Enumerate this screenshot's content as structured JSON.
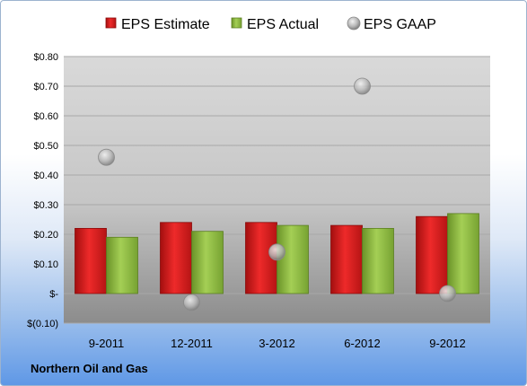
{
  "chart_data": {
    "type": "bar",
    "categories": [
      "9-2011",
      "12-2011",
      "3-2012",
      "6-2012",
      "9-2012"
    ],
    "series": [
      {
        "name": "EPS Estimate",
        "kind": "bar",
        "color": "#d81e1e",
        "values": [
          0.22,
          0.24,
          0.24,
          0.23,
          0.26
        ]
      },
      {
        "name": "EPS Actual",
        "kind": "bar",
        "color": "#8fbf3e",
        "values": [
          0.19,
          0.21,
          0.23,
          0.22,
          0.27
        ]
      },
      {
        "name": "EPS GAAP",
        "kind": "marker",
        "color": "#b3b3b3",
        "values": [
          0.46,
          -0.03,
          0.14,
          0.7,
          0.0
        ]
      }
    ],
    "ylim": [
      -0.1,
      0.8
    ],
    "yticks": [
      {
        "value": 0.8,
        "label": "$0.80"
      },
      {
        "value": 0.7,
        "label": "$0.70"
      },
      {
        "value": 0.6,
        "label": "$0.60"
      },
      {
        "value": 0.5,
        "label": "$0.50"
      },
      {
        "value": 0.4,
        "label": "$0.40"
      },
      {
        "value": 0.3,
        "label": "$0.30"
      },
      {
        "value": 0.2,
        "label": "$0.20"
      },
      {
        "value": 0.1,
        "label": "$0.10"
      },
      {
        "value": 0.0,
        "label": "$-"
      },
      {
        "value": -0.1,
        "label": "$(0.10)"
      }
    ],
    "legend_position": "top",
    "grid": true
  },
  "footer": {
    "company": "Northern Oil and Gas"
  }
}
